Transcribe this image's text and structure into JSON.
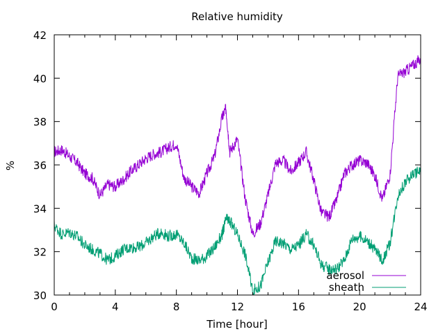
{
  "chart_data": {
    "type": "line",
    "title": "Relative humidity",
    "xlabel": "Time [hour]",
    "ylabel": "%",
    "xlim": [
      0,
      24
    ],
    "ylim": [
      30,
      42
    ],
    "x_ticks": [
      0,
      4,
      8,
      12,
      16,
      20,
      24
    ],
    "x_tick_labels": [
      "0",
      "4",
      "8",
      "12",
      "16",
      "20",
      "24"
    ],
    "y_ticks": [
      30,
      32,
      34,
      36,
      38,
      40,
      42
    ],
    "y_tick_labels": [
      "30",
      "32",
      "34",
      "36",
      "38",
      "40",
      "42"
    ],
    "grid": false,
    "legend_position": "bottom-right",
    "series": [
      {
        "name": "aerosol",
        "color": "#9400d3",
        "x": [
          0.0,
          0.5,
          1.0,
          1.5,
          2.0,
          2.5,
          3.0,
          3.5,
          4.0,
          4.5,
          5.0,
          5.5,
          6.0,
          6.5,
          7.0,
          7.5,
          8.0,
          8.5,
          9.0,
          9.5,
          10.0,
          10.5,
          11.0,
          11.25,
          11.5,
          12.0,
          12.5,
          13.0,
          13.5,
          14.0,
          14.5,
          15.0,
          15.5,
          16.0,
          16.5,
          17.0,
          17.5,
          18.0,
          18.5,
          19.0,
          19.5,
          20.0,
          20.5,
          21.0,
          21.5,
          22.0,
          22.5,
          23.0,
          23.5,
          24.0
        ],
        "values": [
          36.6,
          36.7,
          36.4,
          36.1,
          35.6,
          35.4,
          34.6,
          35.1,
          35.0,
          35.3,
          35.7,
          36.0,
          36.3,
          36.5,
          36.6,
          36.8,
          37.0,
          35.4,
          35.0,
          34.7,
          35.6,
          36.4,
          38.2,
          38.6,
          36.6,
          37.2,
          34.5,
          32.8,
          33.3,
          34.6,
          36.1,
          36.2,
          35.7,
          36.1,
          36.6,
          35.3,
          33.8,
          33.6,
          34.4,
          35.6,
          36.0,
          36.2,
          36.1,
          35.5,
          34.4,
          35.6,
          40.1,
          40.3,
          40.6,
          40.9
        ]
      },
      {
        "name": "sheath",
        "color": "#009e73",
        "x": [
          0.0,
          0.5,
          1.0,
          1.5,
          2.0,
          2.5,
          3.0,
          3.5,
          4.0,
          4.5,
          5.0,
          5.5,
          6.0,
          6.5,
          7.0,
          7.5,
          8.0,
          8.5,
          9.0,
          9.5,
          10.0,
          10.5,
          11.0,
          11.25,
          11.5,
          12.0,
          12.5,
          13.0,
          13.5,
          14.0,
          14.5,
          15.0,
          15.5,
          16.0,
          16.5,
          17.0,
          17.5,
          18.0,
          18.5,
          19.0,
          19.5,
          20.0,
          20.5,
          21.0,
          21.5,
          22.0,
          22.5,
          23.0,
          23.5,
          24.0
        ],
        "values": [
          33.2,
          32.8,
          32.9,
          32.7,
          32.3,
          32.1,
          31.9,
          31.6,
          31.8,
          32.1,
          32.2,
          32.2,
          32.4,
          32.7,
          32.9,
          32.7,
          32.8,
          32.4,
          31.7,
          31.6,
          31.8,
          32.2,
          32.8,
          33.5,
          33.4,
          32.8,
          31.9,
          30.2,
          30.4,
          31.5,
          32.5,
          32.4,
          32.1,
          32.3,
          32.8,
          32.3,
          31.4,
          31.2,
          31.2,
          31.6,
          32.6,
          32.7,
          32.5,
          32.1,
          31.6,
          32.4,
          34.6,
          35.2,
          35.6,
          35.7
        ]
      }
    ]
  }
}
